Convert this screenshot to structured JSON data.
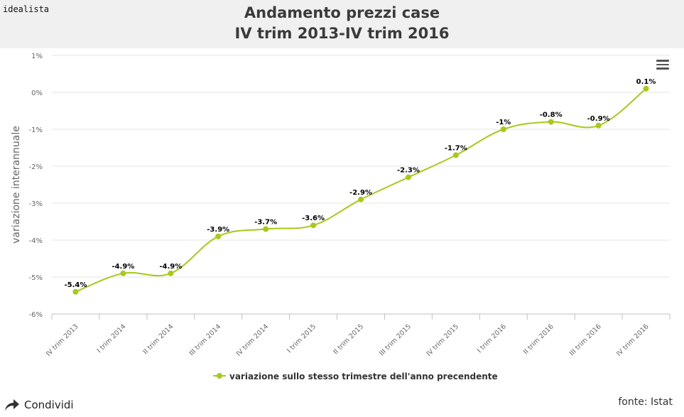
{
  "header": {
    "brand": "idealista",
    "title_line1": "Andamento prezzi case",
    "title_line2": "IV trim 2013-IV trim 2016"
  },
  "chart_data": {
    "type": "line",
    "ylabel": "variazione interannuale",
    "xlabel": "",
    "ylim": [
      -6,
      1
    ],
    "yticks": [
      "1%",
      "0%",
      "-1%",
      "-2%",
      "-3%",
      "-4%",
      "-5%",
      "-6%"
    ],
    "grid": true,
    "legend_position": "bottom-center",
    "categories": [
      "IV trim 2013",
      "I trim 2014",
      "II trim 2014",
      "III trim 2014",
      "IV trim 2014",
      "I trim 2015",
      "II trim 2015",
      "III trim 2015",
      "IV trim 2015",
      "I trim 2016",
      "II trim 2016",
      "III trim 2016",
      "IV trim 2016"
    ],
    "series": [
      {
        "name": "variazione sullo stesso trimestre dell'anno precendente",
        "color": "#a6c91a",
        "values": [
          -5.4,
          -4.9,
          -4.9,
          -3.9,
          -3.7,
          -3.6,
          -2.9,
          -2.3,
          -1.7,
          -1.0,
          -0.8,
          -0.9,
          0.1
        ],
        "labels": [
          "-5.4%",
          "-4.9%",
          "-4.9%",
          "-3.9%",
          "-3.7%",
          "-3.6%",
          "-2.9%",
          "-2.3%",
          "-1.7%",
          "-1%",
          "-0.8%",
          "-0.9%",
          "0.1%"
        ]
      }
    ]
  },
  "footer": {
    "share_label": "Condividi",
    "source": "fonte: Istat"
  },
  "icons": {
    "menu": "hamburger-menu-icon",
    "share": "share-arrow-icon"
  }
}
